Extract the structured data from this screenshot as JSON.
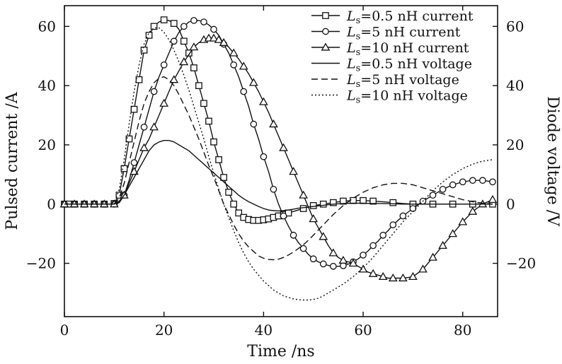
{
  "chart_data": {
    "type": "line",
    "xlabel": "Time /ns",
    "ylabel_left": "Pulsed current /A",
    "ylabel_right": "Diode voltage /V",
    "xlim": [
      0,
      87
    ],
    "ylim_left": [
      -38,
      67
    ],
    "ylim_right": [
      -38,
      67
    ],
    "x_ticks": [
      "0",
      "20",
      "40",
      "60",
      "80"
    ],
    "y_ticks_left": [
      "−20",
      "0",
      "20",
      "40",
      "60"
    ],
    "y_ticks_right": [
      "−20",
      "0",
      "20",
      "40",
      "60"
    ],
    "x_tick_values": [
      0,
      20,
      40,
      60,
      80
    ],
    "y_tick_values": [
      -20,
      0,
      20,
      40,
      60
    ],
    "grid": false,
    "legend_position": "top-right",
    "series": [
      {
        "name": "Ls=0.5 nH current",
        "legend": {
          "sym": "L",
          "sub": "s",
          "rest": "=0.5 nH current"
        },
        "axis": "left",
        "line": "solid",
        "marker": "square",
        "x": [
          0,
          1,
          2,
          3,
          4,
          5,
          6,
          7,
          8,
          9,
          10,
          11,
          12,
          13,
          14,
          15,
          16,
          17,
          18,
          19,
          20,
          21,
          22,
          23,
          24,
          25,
          26,
          27,
          28,
          29,
          30,
          31,
          32,
          33,
          34,
          35,
          36,
          37,
          38,
          39,
          40,
          41,
          42,
          43,
          44,
          45,
          46,
          47,
          48,
          49,
          50,
          52,
          54,
          56,
          58,
          60,
          62,
          64,
          66,
          68,
          70,
          72,
          74,
          76,
          78,
          80,
          82,
          84,
          86
        ],
        "y": [
          0,
          0,
          0,
          0,
          0,
          0,
          0,
          0,
          0,
          0,
          0.2,
          3,
          12,
          22,
          32,
          42,
          52,
          57,
          60,
          61.5,
          62.2,
          62,
          61,
          59,
          55,
          51,
          46,
          40,
          34,
          28,
          21,
          15,
          9,
          4,
          0,
          -3,
          -4.5,
          -5.2,
          -5.5,
          -5.5,
          -5.3,
          -5,
          -4.5,
          -4,
          -3.5,
          -3,
          -2.5,
          -2,
          -1.5,
          -1,
          -0.5,
          0,
          0.5,
          1,
          1.2,
          1.2,
          1,
          0.8,
          0.5,
          0.2,
          0,
          0,
          0,
          0,
          0,
          0,
          0,
          0,
          0
        ],
        "markers_x": [
          0,
          1,
          2,
          4,
          6,
          8,
          10,
          11,
          12,
          13,
          14,
          15,
          16,
          17,
          18,
          20,
          22,
          24,
          25,
          26,
          27,
          28,
          29,
          30,
          31,
          32,
          33,
          34,
          35,
          36,
          37,
          38,
          39,
          40,
          41,
          42,
          43,
          44,
          45,
          48,
          50,
          52,
          54,
          56,
          58,
          60,
          62,
          66,
          70,
          74,
          78,
          82,
          86
        ]
      },
      {
        "name": "Ls=5 nH current",
        "legend": {
          "sym": "L",
          "sub": "s",
          "rest": "=5 nH current"
        },
        "axis": "left",
        "line": "solid",
        "marker": "circle",
        "x": [
          0,
          2,
          4,
          6,
          8,
          10,
          11,
          12,
          13,
          14,
          15,
          16,
          17,
          18,
          19,
          20,
          21,
          22,
          23,
          24,
          25,
          26,
          27,
          28,
          29,
          30,
          31,
          32,
          33,
          34,
          35,
          36,
          37,
          38,
          39,
          40,
          41,
          42,
          43,
          44,
          45,
          46,
          47,
          48,
          49,
          50,
          51,
          52,
          53,
          54,
          55,
          56,
          57,
          58,
          59,
          60,
          61,
          62,
          63,
          64,
          65,
          66,
          67,
          68,
          70,
          72,
          74,
          76,
          78,
          80,
          82,
          84,
          86
        ],
        "y": [
          0,
          0,
          0,
          0,
          0,
          0,
          0.5,
          3,
          8,
          14,
          20,
          26,
          32,
          38,
          43,
          47,
          51,
          55,
          58,
          60,
          61.5,
          62,
          62,
          61.5,
          60.5,
          59,
          57,
          54,
          51,
          47,
          43,
          38,
          33,
          27,
          22,
          16,
          11,
          5,
          0,
          -4,
          -7.5,
          -10.5,
          -13,
          -15,
          -17,
          -18.5,
          -19.5,
          -20.2,
          -20.7,
          -21,
          -21,
          -20.8,
          -20.3,
          -19.5,
          -18.5,
          -17.2,
          -15.8,
          -14,
          -12.5,
          -10.5,
          -9,
          -7,
          -5.5,
          -4,
          -1.5,
          1,
          3,
          5,
          6.5,
          7.5,
          8,
          8,
          7.5
        ],
        "markers_x": [
          0,
          2,
          4,
          6,
          8,
          10,
          12,
          14,
          16,
          18,
          20,
          22,
          24,
          26,
          28,
          30,
          32,
          34,
          36,
          38,
          40,
          42,
          44,
          46,
          48,
          50,
          52,
          54,
          56,
          58,
          60,
          62,
          64,
          66,
          68,
          70,
          72,
          74,
          76,
          78,
          80,
          82,
          84,
          86
        ]
      },
      {
        "name": "Ls=10 nH current",
        "legend": {
          "sym": "L",
          "sub": "s",
          "rest": "=10 nH current"
        },
        "axis": "left",
        "line": "solid",
        "marker": "triangle",
        "x": [
          0,
          2,
          4,
          6,
          8,
          10,
          11,
          12,
          13,
          14,
          15,
          16,
          17,
          18,
          19,
          20,
          21,
          22,
          23,
          24,
          25,
          26,
          27,
          28,
          29,
          30,
          31,
          32,
          33,
          34,
          35,
          36,
          37,
          38,
          39,
          40,
          41,
          42,
          43,
          44,
          45,
          46,
          47,
          48,
          49,
          50,
          51,
          52,
          53,
          54,
          55,
          56,
          57,
          58,
          59,
          60,
          61,
          62,
          63,
          64,
          65,
          66,
          67,
          68,
          69,
          70,
          72,
          74,
          76,
          78,
          80,
          82,
          84,
          86
        ],
        "y": [
          0,
          0,
          0,
          0,
          0,
          0,
          0.5,
          3,
          7,
          11,
          15,
          19,
          22,
          26,
          30,
          34,
          38,
          42,
          45,
          48,
          50.5,
          53,
          54.5,
          55.5,
          56,
          56,
          55.5,
          54.5,
          53,
          51,
          49,
          46.5,
          44,
          41,
          38,
          34.5,
          31,
          27,
          23,
          19,
          15,
          11,
          7,
          3,
          -1,
          -5,
          -8,
          -11,
          -14,
          -16.5,
          -18,
          -19,
          -19.5,
          -20,
          -21,
          -22,
          -23,
          -23.5,
          -24,
          -24.5,
          -25,
          -25,
          -25,
          -25,
          -24.8,
          -24.5,
          -22,
          -18,
          -14,
          -10,
          -6,
          -2.5,
          0,
          1.5
        ],
        "markers_x": [
          0,
          2,
          4,
          6,
          8,
          10,
          12,
          14,
          16,
          18,
          20,
          22,
          24,
          26,
          28,
          29,
          30,
          31,
          32,
          34,
          36,
          38,
          40,
          42,
          44,
          46,
          48,
          50,
          52,
          54,
          56,
          58,
          60,
          62,
          64,
          66,
          68,
          70,
          72,
          74,
          76,
          78,
          80,
          82,
          84,
          86
        ]
      },
      {
        "name": "Ls=0.5 nH voltage",
        "legend": {
          "sym": "L",
          "sub": "s",
          "rest": "=0.5 nH voltage"
        },
        "axis": "right",
        "line": "solid",
        "marker": "none",
        "x": [
          0,
          10,
          11,
          12,
          13,
          14,
          15,
          16,
          17,
          18,
          19,
          20,
          21,
          22,
          23,
          24,
          25,
          26,
          27,
          28,
          29,
          30,
          31,
          32,
          33,
          34,
          35,
          36,
          37,
          38,
          39,
          40,
          41,
          42,
          43,
          44,
          45,
          46,
          47,
          48,
          50,
          52,
          54,
          56,
          58,
          60,
          62,
          64,
          66,
          68,
          70,
          72,
          74,
          76,
          78,
          80,
          82,
          84,
          86
        ],
        "y": [
          0,
          0,
          1,
          3,
          6,
          9,
          12,
          15,
          18,
          20,
          21,
          21.5,
          21.5,
          21,
          20,
          19,
          18,
          16.5,
          15,
          13.5,
          12,
          10.5,
          9,
          7.5,
          6,
          4.5,
          3,
          1.8,
          0.8,
          0,
          -0.8,
          -1.5,
          -2,
          -2.2,
          -2.3,
          -2.2,
          -2,
          -1.7,
          -1.4,
          -1.2,
          -0.8,
          -0.4,
          0,
          0.2,
          0.3,
          0.3,
          0.2,
          0.2,
          0.1,
          0,
          0,
          0,
          0,
          0,
          0,
          0,
          0,
          0,
          0
        ]
      },
      {
        "name": "Ls=5 nH voltage",
        "legend": {
          "sym": "L",
          "sub": "s",
          "rest": "=5 nH voltage"
        },
        "axis": "right",
        "line": "dashed",
        "marker": "none",
        "x": [
          0,
          10,
          11,
          12,
          13,
          14,
          15,
          16,
          17,
          18,
          19,
          20,
          21,
          22,
          23,
          24,
          25,
          26,
          27,
          28,
          29,
          30,
          31,
          32,
          33,
          34,
          35,
          36,
          37,
          38,
          39,
          40,
          41,
          42,
          43,
          44,
          45,
          46,
          47,
          48,
          49,
          50,
          52,
          54,
          56,
          58,
          60,
          62,
          64,
          66,
          68,
          70,
          72,
          74,
          76,
          78,
          80,
          82,
          84,
          86
        ],
        "y": [
          0,
          0,
          2,
          7,
          14,
          21,
          28,
          34,
          38,
          41,
          42.5,
          43,
          42,
          40,
          37,
          33.5,
          30,
          26,
          22,
          17.5,
          13,
          9,
          4.5,
          0,
          -3.5,
          -7,
          -10,
          -12.5,
          -14.5,
          -16,
          -17.5,
          -18.3,
          -18.7,
          -18.8,
          -18.6,
          -18,
          -17.2,
          -16.2,
          -15,
          -13.7,
          -12.2,
          -10.5,
          -7,
          -3.5,
          -0.5,
          2,
          4,
          5.5,
          6.5,
          7,
          7,
          6.5,
          5.5,
          4.5,
          3.5,
          2.5,
          1.5,
          0.8,
          0.3,
          0
        ]
      },
      {
        "name": "Ls=10 nH voltage",
        "legend": {
          "sym": "L",
          "sub": "s",
          "rest": "=10 nH voltage"
        },
        "axis": "right",
        "line": "dotted",
        "marker": "none",
        "x": [
          0,
          10,
          11,
          12,
          13,
          14,
          15,
          16,
          17,
          18,
          19,
          20,
          21,
          22,
          23,
          24,
          25,
          26,
          27,
          28,
          29,
          30,
          31,
          32,
          33,
          34,
          35,
          36,
          37,
          38,
          39,
          40,
          41,
          42,
          43,
          44,
          45,
          46,
          47,
          48,
          49,
          50,
          51,
          52,
          53,
          54,
          56,
          58,
          60,
          62,
          64,
          66,
          68,
          70,
          72,
          74,
          76,
          78,
          80,
          82,
          84,
          86
        ],
        "y": [
          0,
          0,
          5,
          15,
          27,
          38,
          47,
          54,
          58,
          59.5,
          59.5,
          58,
          55.5,
          52,
          48,
          43.5,
          38.5,
          33,
          27.5,
          22,
          16,
          10.5,
          5,
          0,
          -4.5,
          -9,
          -13,
          -16.5,
          -19.5,
          -22,
          -24,
          -26,
          -27.5,
          -29,
          -30,
          -31,
          -31.5,
          -32,
          -32.3,
          -32.4,
          -32.4,
          -32.2,
          -31.8,
          -31,
          -30,
          -29,
          -27,
          -24.5,
          -21.5,
          -18,
          -14,
          -10,
          -6,
          -2.5,
          1,
          4.5,
          7.5,
          10,
          12,
          13.5,
          14.5,
          15
        ]
      }
    ]
  }
}
